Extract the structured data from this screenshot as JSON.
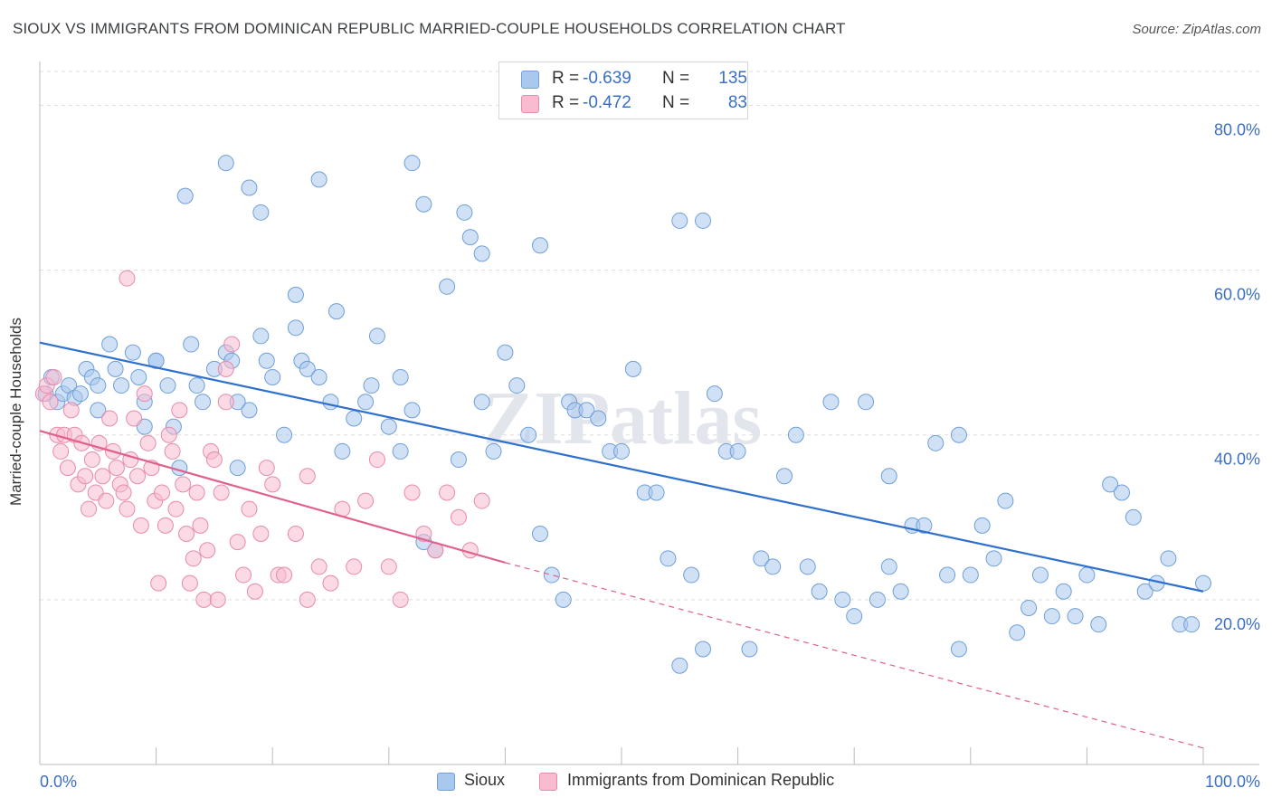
{
  "title": "SIOUX VS IMMIGRANTS FROM DOMINICAN REPUBLIC MARRIED-COUPLE HOUSEHOLDS CORRELATION CHART",
  "source": "Source: ZipAtlas.com",
  "watermark": "ZIPatlas",
  "legend": {
    "rows": [
      {
        "r_label": "R =",
        "r_value": "-0.639",
        "n_label": "N =",
        "n_value": "135"
      },
      {
        "r_label": "R =",
        "r_value": "-0.472",
        "n_label": "N =",
        "n_value": "83"
      }
    ]
  },
  "bottom_legend": {
    "sioux": "Sioux",
    "dominican": "Immigrants from Dominican Republic"
  },
  "colors": {
    "sioux_fill": "#a9c8ee",
    "sioux_stroke": "#6f9fd8",
    "sioux_line": "#2f6fce",
    "dom_fill": "#f7bcd0",
    "dom_stroke": "#e78aab",
    "dom_line": "#e0608e",
    "axis_text": "#3a6fc4",
    "grid": "#dddddd"
  },
  "chart_data": {
    "type": "scatter",
    "title": "SIOUX VS IMMIGRANTS FROM DOMINICAN REPUBLIC MARRIED-COUPLE HOUSEHOLDS CORRELATION CHART",
    "xlabel": "",
    "ylabel": "Married-couple Households",
    "xlim": [
      0,
      100
    ],
    "ylim": [
      0,
      84
    ],
    "x_tick_labels": [
      "0.0%",
      "100.0%"
    ],
    "y_ticks": [
      20,
      40,
      60,
      80
    ],
    "y_tick_labels": [
      "20.0%",
      "40.0%",
      "60.0%",
      "80.0%"
    ],
    "grid": "horizontal dashed",
    "legend_placement": "top-center",
    "series": [
      {
        "name": "Sioux",
        "r": -0.639,
        "n": 135,
        "trend": {
          "x": [
            0,
            100
          ],
          "y": [
            51.2,
            21.0
          ]
        },
        "points": [
          [
            0.5,
            45
          ],
          [
            1,
            47
          ],
          [
            1.5,
            44
          ],
          [
            2,
            45
          ],
          [
            2.5,
            46
          ],
          [
            3,
            44.5
          ],
          [
            3.5,
            45
          ],
          [
            4,
            48
          ],
          [
            4.5,
            47
          ],
          [
            5,
            43
          ],
          [
            6,
            51
          ],
          [
            6.5,
            48
          ],
          [
            7,
            46
          ],
          [
            8,
            50
          ],
          [
            8.5,
            47
          ],
          [
            9,
            44
          ],
          [
            10,
            49
          ],
          [
            11,
            46
          ],
          [
            11.5,
            41
          ],
          [
            12,
            36
          ],
          [
            13,
            51
          ],
          [
            13.5,
            46
          ],
          [
            14,
            44
          ],
          [
            15,
            48
          ],
          [
            16,
            50
          ],
          [
            16.5,
            49
          ],
          [
            17,
            36
          ],
          [
            18,
            43
          ],
          [
            19,
            52
          ],
          [
            19.5,
            49
          ],
          [
            20,
            47
          ],
          [
            21,
            40
          ],
          [
            22,
            57
          ],
          [
            22.5,
            49
          ],
          [
            23,
            48
          ],
          [
            24,
            47
          ],
          [
            25,
            44
          ],
          [
            25.5,
            55
          ],
          [
            26,
            38
          ],
          [
            27,
            42
          ],
          [
            28,
            44
          ],
          [
            28.5,
            46
          ],
          [
            29,
            52
          ],
          [
            30,
            41
          ],
          [
            31,
            47
          ],
          [
            32,
            43
          ],
          [
            33,
            27
          ],
          [
            34,
            26
          ],
          [
            35,
            58
          ],
          [
            36,
            37
          ],
          [
            36.5,
            67
          ],
          [
            37,
            64
          ],
          [
            38,
            44
          ],
          [
            39,
            38
          ],
          [
            40,
            50
          ],
          [
            41,
            46
          ],
          [
            42,
            40
          ],
          [
            43,
            28
          ],
          [
            44,
            23
          ],
          [
            45,
            20
          ],
          [
            45.5,
            44
          ],
          [
            46,
            43
          ],
          [
            47,
            43
          ],
          [
            48,
            42
          ],
          [
            49,
            38
          ],
          [
            50,
            38
          ],
          [
            51,
            48
          ],
          [
            52,
            33
          ],
          [
            53,
            33
          ],
          [
            54,
            25
          ],
          [
            55,
            12
          ],
          [
            56,
            23
          ],
          [
            57,
            14
          ],
          [
            58,
            45
          ],
          [
            59,
            38
          ],
          [
            60,
            38
          ],
          [
            61,
            14
          ],
          [
            62,
            25
          ],
          [
            63,
            24
          ],
          [
            64,
            35
          ],
          [
            65,
            40
          ],
          [
            66,
            24
          ],
          [
            67,
            21
          ],
          [
            68,
            44
          ],
          [
            69,
            20
          ],
          [
            70,
            18
          ],
          [
            71,
            44
          ],
          [
            72,
            20
          ],
          [
            73,
            35
          ],
          [
            74,
            21
          ],
          [
            75,
            29
          ],
          [
            76,
            29
          ],
          [
            77,
            39
          ],
          [
            78,
            23
          ],
          [
            79,
            40
          ],
          [
            80,
            23
          ],
          [
            81,
            29
          ],
          [
            82,
            25
          ],
          [
            83,
            32
          ],
          [
            84,
            16
          ],
          [
            85,
            19
          ],
          [
            86,
            23
          ],
          [
            87,
            18
          ],
          [
            88,
            21
          ],
          [
            89,
            18
          ],
          [
            90,
            23
          ],
          [
            91,
            17
          ],
          [
            92,
            34
          ],
          [
            93,
            33
          ],
          [
            94,
            30
          ],
          [
            95,
            21
          ],
          [
            96,
            22
          ],
          [
            97,
            25
          ],
          [
            98,
            17
          ],
          [
            99,
            17
          ],
          [
            100,
            22
          ],
          [
            12.5,
            69
          ],
          [
            16,
            73
          ],
          [
            18,
            70
          ],
          [
            19,
            67
          ],
          [
            24,
            71
          ],
          [
            32,
            73
          ],
          [
            33,
            68
          ],
          [
            43,
            63
          ],
          [
            55,
            66
          ],
          [
            38,
            62
          ],
          [
            57,
            66
          ],
          [
            5,
            46
          ],
          [
            9,
            41
          ],
          [
            10,
            49
          ],
          [
            17,
            44
          ],
          [
            22,
            53
          ],
          [
            31,
            38
          ],
          [
            73,
            24
          ],
          [
            79,
            14
          ]
        ]
      },
      {
        "name": "Immigrants from Dominican Republic",
        "r": -0.472,
        "n": 83,
        "trend": {
          "x": [
            0,
            40
          ],
          "y": [
            40.5,
            24.5
          ]
        },
        "trend_extension": {
          "x": [
            40,
            100
          ],
          "y": [
            24.5,
            2.0
          ]
        },
        "points": [
          [
            0.3,
            45
          ],
          [
            0.6,
            46
          ],
          [
            0.9,
            44
          ],
          [
            1.2,
            47
          ],
          [
            1.5,
            40
          ],
          [
            1.8,
            38
          ],
          [
            2.1,
            40
          ],
          [
            2.4,
            36
          ],
          [
            2.7,
            43
          ],
          [
            3,
            40
          ],
          [
            3.3,
            34
          ],
          [
            3.6,
            39
          ],
          [
            3.9,
            35
          ],
          [
            4.2,
            31
          ],
          [
            4.5,
            37
          ],
          [
            4.8,
            33
          ],
          [
            5.1,
            39
          ],
          [
            5.4,
            35
          ],
          [
            5.7,
            32
          ],
          [
            6,
            42
          ],
          [
            6.3,
            38
          ],
          [
            6.6,
            36
          ],
          [
            6.9,
            34
          ],
          [
            7.2,
            33
          ],
          [
            7.5,
            31
          ],
          [
            7.8,
            37
          ],
          [
            8.1,
            42
          ],
          [
            8.4,
            35
          ],
          [
            8.7,
            29
          ],
          [
            9,
            45
          ],
          [
            9.3,
            39
          ],
          [
            9.6,
            36
          ],
          [
            9.9,
            32
          ],
          [
            10.2,
            22
          ],
          [
            10.5,
            33
          ],
          [
            10.8,
            29
          ],
          [
            11.1,
            40
          ],
          [
            11.4,
            38
          ],
          [
            11.7,
            31
          ],
          [
            12,
            43
          ],
          [
            12.3,
            34
          ],
          [
            12.6,
            28
          ],
          [
            12.9,
            22
          ],
          [
            13.2,
            25
          ],
          [
            13.5,
            33
          ],
          [
            13.8,
            29
          ],
          [
            14.1,
            20
          ],
          [
            14.4,
            26
          ],
          [
            14.7,
            38
          ],
          [
            15,
            37
          ],
          [
            15.3,
            20
          ],
          [
            15.6,
            33
          ],
          [
            16,
            44
          ],
          [
            16.5,
            51
          ],
          [
            17,
            27
          ],
          [
            17.5,
            23
          ],
          [
            18,
            31
          ],
          [
            18.5,
            21
          ],
          [
            19,
            28
          ],
          [
            19.5,
            36
          ],
          [
            20,
            34
          ],
          [
            20.5,
            23
          ],
          [
            21,
            23
          ],
          [
            22,
            28
          ],
          [
            23,
            35
          ],
          [
            24,
            24
          ],
          [
            25,
            22
          ],
          [
            26,
            31
          ],
          [
            27,
            24
          ],
          [
            28,
            32
          ],
          [
            29,
            37
          ],
          [
            30,
            24
          ],
          [
            31,
            20
          ],
          [
            32,
            33
          ],
          [
            33,
            28
          ],
          [
            34,
            26
          ],
          [
            35,
            33
          ],
          [
            36,
            30
          ],
          [
            37,
            26
          ],
          [
            38,
            32
          ],
          [
            7.5,
            59
          ],
          [
            16,
            48
          ],
          [
            23,
            20
          ]
        ]
      }
    ]
  }
}
